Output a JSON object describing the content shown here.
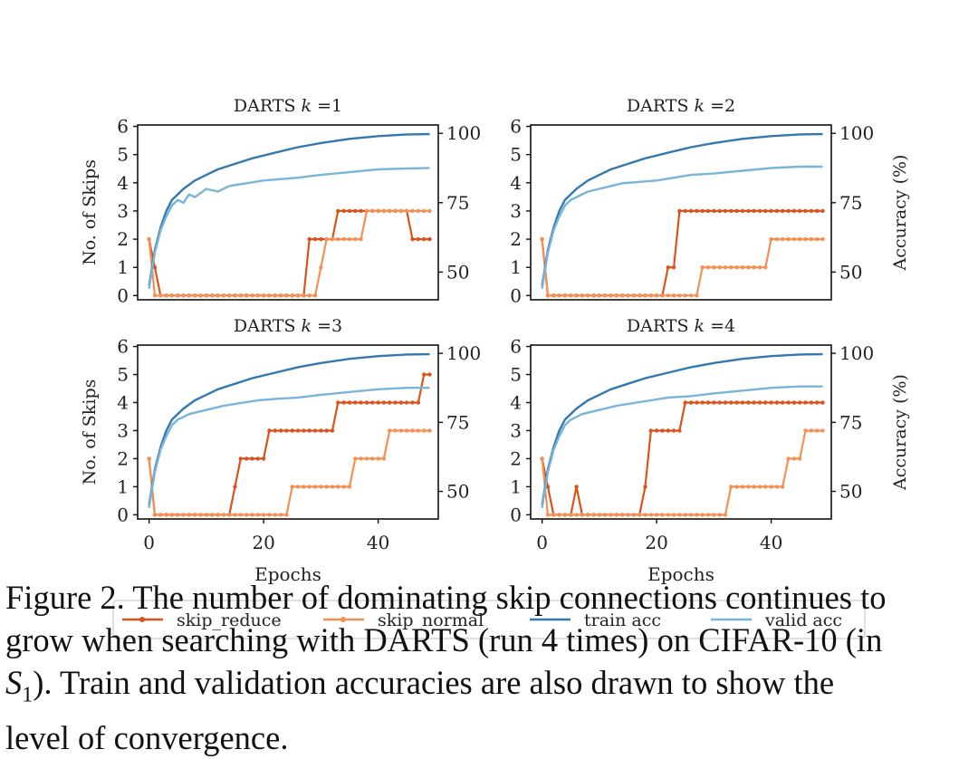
{
  "figure": {
    "caption_lines": [
      "Figure 2. The number of dominating skip connections continues to",
      "grow when searching with DARTS (run 4 times) on CIFAR-10 (in",
      "). Train and validation accuracies are also drawn to show the",
      "level of convergence."
    ],
    "caption_math_s": "S",
    "caption_math_sub": "1"
  },
  "legend": {
    "items": [
      {
        "label": "skip_reduce",
        "color": "#d9541d",
        "marker": true
      },
      {
        "label": "skip_normal",
        "color": "#f29155",
        "marker": true
      },
      {
        "label": "train acc",
        "color": "#3478b0",
        "marker": false
      },
      {
        "label": "valid acc",
        "color": "#79b4d9",
        "marker": false
      }
    ]
  },
  "colors": {
    "skip_reduce": "#d9541d",
    "skip_normal": "#f29155",
    "train_acc": "#3478b0",
    "valid_acc": "#79b4d9"
  },
  "chart_data": [
    {
      "type": "line",
      "title_prefix": "DARTS ",
      "title_k": "k",
      "title_suffix": " =1",
      "xlabel": "",
      "ylabel_left": "No. of Skips",
      "ylabel_right": "",
      "xlim": [
        -2,
        50.5
      ],
      "ylim_left": [
        -0.15,
        6.05
      ],
      "ylim_right": [
        40,
        103
      ],
      "x_ticks": [],
      "y_ticks_left": [
        "0",
        "1",
        "2",
        "3",
        "4",
        "5",
        "6"
      ],
      "y_ticks_right": [
        "50",
        "75",
        "100"
      ],
      "series": [
        {
          "name": "skip_reduce",
          "axis": "left",
          "steps": [
            [
              0,
              2
            ],
            [
              1,
              1
            ],
            [
              2,
              0
            ],
            [
              28,
              2
            ],
            [
              33,
              3
            ],
            [
              46,
              2
            ],
            [
              49,
              2
            ]
          ]
        },
        {
          "name": "skip_normal",
          "axis": "left",
          "steps": [
            [
              0,
              2
            ],
            [
              1,
              0
            ],
            [
              30,
              1
            ],
            [
              31,
              2
            ],
            [
              38,
              3
            ],
            [
              49,
              3
            ]
          ]
        },
        {
          "name": "train acc",
          "axis": "right",
          "points": [
            [
              0,
              45
            ],
            [
              1,
              58
            ],
            [
              2,
              66
            ],
            [
              3,
              72
            ],
            [
              4,
              76
            ],
            [
              6,
              80
            ],
            [
              8,
              83
            ],
            [
              10,
              85
            ],
            [
              12,
              87
            ],
            [
              15,
              89
            ],
            [
              18,
              91
            ],
            [
              22,
              93
            ],
            [
              26,
              95
            ],
            [
              30,
              96.5
            ],
            [
              35,
              98
            ],
            [
              40,
              99
            ],
            [
              45,
              99.6
            ],
            [
              49,
              99.7
            ]
          ]
        },
        {
          "name": "valid acc",
          "axis": "right",
          "points": [
            [
              0,
              44
            ],
            [
              1,
              57
            ],
            [
              2,
              65
            ],
            [
              3,
              70
            ],
            [
              4,
              74
            ],
            [
              5,
              76
            ],
            [
              6,
              75
            ],
            [
              7,
              78
            ],
            [
              8,
              77
            ],
            [
              10,
              80
            ],
            [
              12,
              79
            ],
            [
              14,
              81
            ],
            [
              17,
              82
            ],
            [
              20,
              83
            ],
            [
              23,
              83.5
            ],
            [
              26,
              84
            ],
            [
              30,
              85
            ],
            [
              35,
              86
            ],
            [
              40,
              87
            ],
            [
              45,
              87.3
            ],
            [
              49,
              87.5
            ]
          ]
        }
      ]
    },
    {
      "type": "line",
      "title_prefix": "DARTS ",
      "title_k": "k",
      "title_suffix": " =2",
      "xlabel": "",
      "ylabel_left": "",
      "ylabel_right": "Accuracy (%)",
      "xlim": [
        -2,
        50.5
      ],
      "ylim_left": [
        -0.15,
        6.05
      ],
      "ylim_right": [
        40,
        103
      ],
      "x_ticks": [],
      "y_ticks_left": [
        "0",
        "1",
        "2",
        "3",
        "4",
        "5",
        "6"
      ],
      "y_ticks_right": [
        "50",
        "75",
        "100"
      ],
      "series": [
        {
          "name": "skip_reduce",
          "axis": "left",
          "steps": [
            [
              0,
              2
            ],
            [
              1,
              0
            ],
            [
              22,
              1
            ],
            [
              24,
              3
            ],
            [
              49,
              3
            ]
          ]
        },
        {
          "name": "skip_normal",
          "axis": "left",
          "steps": [
            [
              0,
              2
            ],
            [
              1,
              0
            ],
            [
              28,
              1
            ],
            [
              40,
              2
            ],
            [
              49,
              2
            ]
          ]
        },
        {
          "name": "train acc",
          "axis": "right",
          "points": [
            [
              0,
              45
            ],
            [
              1,
              58
            ],
            [
              2,
              66
            ],
            [
              3,
              72
            ],
            [
              4,
              76
            ],
            [
              6,
              80
            ],
            [
              8,
              83
            ],
            [
              10,
              85
            ],
            [
              12,
              87
            ],
            [
              15,
              89
            ],
            [
              18,
              91
            ],
            [
              22,
              93
            ],
            [
              26,
              95
            ],
            [
              30,
              96.5
            ],
            [
              35,
              98
            ],
            [
              40,
              99
            ],
            [
              45,
              99.6
            ],
            [
              49,
              99.7
            ]
          ]
        },
        {
          "name": "valid acc",
          "axis": "right",
          "points": [
            [
              0,
              44
            ],
            [
              1,
              57
            ],
            [
              2,
              65
            ],
            [
              3,
              70
            ],
            [
              4,
              74
            ],
            [
              5,
              76
            ],
            [
              6,
              77
            ],
            [
              8,
              79
            ],
            [
              10,
              80
            ],
            [
              12,
              81
            ],
            [
              14,
              82
            ],
            [
              17,
              82.5
            ],
            [
              20,
              83
            ],
            [
              23,
              84
            ],
            [
              26,
              85
            ],
            [
              30,
              85.5
            ],
            [
              35,
              86.5
            ],
            [
              40,
              87.5
            ],
            [
              45,
              88
            ],
            [
              49,
              88
            ]
          ]
        }
      ]
    },
    {
      "type": "line",
      "title_prefix": "DARTS ",
      "title_k": "k",
      "title_suffix": " =3",
      "xlabel": "Epochs",
      "ylabel_left": "No. of Skips",
      "ylabel_right": "",
      "xlim": [
        -2,
        50.5
      ],
      "ylim_left": [
        -0.15,
        6.05
      ],
      "ylim_right": [
        40,
        103
      ],
      "x_ticks": [
        "0",
        "20",
        "40"
      ],
      "y_ticks_left": [
        "0",
        "1",
        "2",
        "3",
        "4",
        "5",
        "6"
      ],
      "y_ticks_right": [
        "50",
        "75",
        "100"
      ],
      "series": [
        {
          "name": "skip_reduce",
          "axis": "left",
          "steps": [
            [
              0,
              2
            ],
            [
              1,
              0
            ],
            [
              15,
              1
            ],
            [
              16,
              2
            ],
            [
              21,
              3
            ],
            [
              33,
              4
            ],
            [
              48,
              5
            ],
            [
              49,
              5
            ]
          ]
        },
        {
          "name": "skip_normal",
          "axis": "left",
          "steps": [
            [
              0,
              2
            ],
            [
              1,
              0
            ],
            [
              25,
              1
            ],
            [
              36,
              2
            ],
            [
              42,
              3
            ],
            [
              49,
              3
            ]
          ]
        },
        {
          "name": "train acc",
          "axis": "right",
          "points": [
            [
              0,
              45
            ],
            [
              1,
              58
            ],
            [
              2,
              66
            ],
            [
              3,
              72
            ],
            [
              4,
              76
            ],
            [
              6,
              80
            ],
            [
              8,
              83
            ],
            [
              10,
              85
            ],
            [
              12,
              87
            ],
            [
              15,
              89
            ],
            [
              18,
              91
            ],
            [
              22,
              93
            ],
            [
              26,
              95
            ],
            [
              30,
              96.5
            ],
            [
              35,
              98
            ],
            [
              40,
              99
            ],
            [
              45,
              99.6
            ],
            [
              49,
              99.7
            ]
          ]
        },
        {
          "name": "valid acc",
          "axis": "right",
          "points": [
            [
              0,
              44
            ],
            [
              1,
              57
            ],
            [
              2,
              65
            ],
            [
              3,
              70
            ],
            [
              4,
              74
            ],
            [
              5,
              76
            ],
            [
              7,
              78
            ],
            [
              9,
              79
            ],
            [
              11,
              80
            ],
            [
              13,
              81
            ],
            [
              16,
              82
            ],
            [
              19,
              83
            ],
            [
              22,
              83.5
            ],
            [
              26,
              84
            ],
            [
              30,
              85
            ],
            [
              35,
              86
            ],
            [
              40,
              87
            ],
            [
              45,
              87.5
            ],
            [
              49,
              87.5
            ]
          ]
        }
      ]
    },
    {
      "type": "line",
      "title_prefix": "DARTS ",
      "title_k": "k",
      "title_suffix": " =4",
      "xlabel": "Epochs",
      "ylabel_left": "",
      "ylabel_right": "Accuracy (%)",
      "xlim": [
        -2,
        50.5
      ],
      "ylim_left": [
        -0.15,
        6.05
      ],
      "ylim_right": [
        40,
        103
      ],
      "x_ticks": [
        "0",
        "20",
        "40"
      ],
      "y_ticks_left": [
        "0",
        "1",
        "2",
        "3",
        "4",
        "5",
        "6"
      ],
      "y_ticks_right": [
        "50",
        "75",
        "100"
      ],
      "series": [
        {
          "name": "skip_reduce",
          "axis": "left",
          "steps": [
            [
              0,
              2
            ],
            [
              1,
              1
            ],
            [
              2,
              0
            ],
            [
              6,
              1
            ],
            [
              7,
              0
            ],
            [
              18,
              1
            ],
            [
              19,
              3
            ],
            [
              25,
              4
            ],
            [
              49,
              4
            ]
          ]
        },
        {
          "name": "skip_normal",
          "axis": "left",
          "steps": [
            [
              0,
              2
            ],
            [
              1,
              0
            ],
            [
              33,
              1
            ],
            [
              43,
              2
            ],
            [
              46,
              3
            ],
            [
              49,
              3
            ]
          ]
        },
        {
          "name": "train acc",
          "axis": "right",
          "points": [
            [
              0,
              45
            ],
            [
              1,
              58
            ],
            [
              2,
              66
            ],
            [
              3,
              72
            ],
            [
              4,
              76
            ],
            [
              6,
              80
            ],
            [
              8,
              83
            ],
            [
              10,
              85
            ],
            [
              12,
              87
            ],
            [
              15,
              89
            ],
            [
              18,
              91
            ],
            [
              22,
              93
            ],
            [
              26,
              95
            ],
            [
              30,
              96.5
            ],
            [
              35,
              98
            ],
            [
              40,
              99
            ],
            [
              45,
              99.6
            ],
            [
              49,
              99.7
            ]
          ]
        },
        {
          "name": "valid acc",
          "axis": "right",
          "points": [
            [
              0,
              44
            ],
            [
              1,
              57
            ],
            [
              2,
              65
            ],
            [
              3,
              70
            ],
            [
              4,
              74
            ],
            [
              5,
              76
            ],
            [
              7,
              78
            ],
            [
              9,
              79
            ],
            [
              11,
              80
            ],
            [
              13,
              81
            ],
            [
              16,
              82
            ],
            [
              19,
              83
            ],
            [
              22,
              84
            ],
            [
              26,
              84.5
            ],
            [
              30,
              85.5
            ],
            [
              35,
              86.5
            ],
            [
              40,
              87.5
            ],
            [
              45,
              88
            ],
            [
              49,
              88
            ]
          ]
        }
      ]
    }
  ]
}
